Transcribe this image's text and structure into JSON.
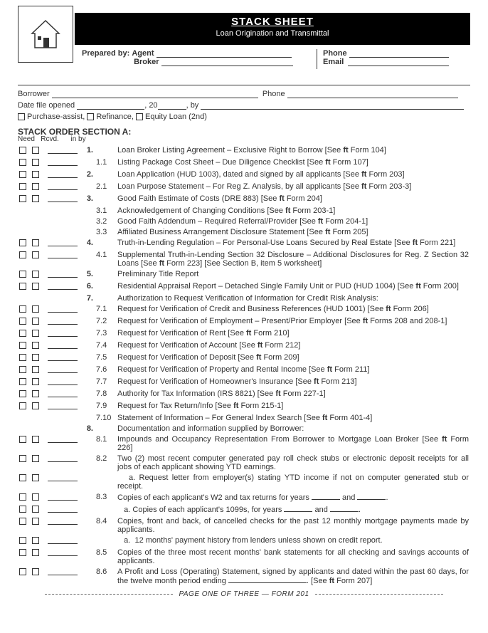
{
  "header": {
    "title": "STACK SHEET",
    "subtitle": "Loan Origination and Transmittal"
  },
  "prep": {
    "label": "Prepared by:",
    "agent": "Agent",
    "broker": "Broker",
    "phone": "Phone",
    "email": "Email"
  },
  "info": {
    "borrower": "Borrower",
    "phone": "Phone",
    "date_opened": "Date file opened",
    "by": "by",
    "year_prefix": "20",
    "purchase": "Purchase-assist,",
    "refinance": "Refinance,",
    "equity": "Equity Loan (2nd)"
  },
  "section": {
    "title": "STACK ORDER SECTION A:",
    "need": "Need",
    "rcvd": "Rcvd.",
    "inby": "in by"
  },
  "items": [
    {
      "cb": true,
      "num": "1.",
      "sub": "",
      "text": "Loan Broker Listing Agreement – Exclusive Right to Borrow [See <span class='ft'>ft</span> Form 104]"
    },
    {
      "cb": true,
      "num": "",
      "sub": "1.1",
      "text": "Listing Package Cost Sheet – Due Diligence Checklist [See <span class='ft'>ft</span> Form 107]"
    },
    {
      "cb": true,
      "num": "2.",
      "sub": "",
      "text": "Loan Application (HUD 1003), dated and signed by all applicants [See <span class='ft'>ft</span> Form 203]"
    },
    {
      "cb": true,
      "num": "",
      "sub": "2.1",
      "text": "Loan Purpose Statement – For Reg Z. Analysis, by all applicants [See <span class='ft'>ft</span> Form 203-3]"
    },
    {
      "cb": true,
      "num": "3.",
      "sub": "",
      "text": "Good Faith Estimate of Costs (DRE 883) [See <span class='ft'>ft</span> Form 204]"
    },
    {
      "cb": false,
      "num": "",
      "sub": "3.1",
      "text": "Acknowledgement of Changing Conditions [See <span class='ft'>ft</span> Form 203-1]"
    },
    {
      "cb": false,
      "num": "",
      "sub": "3.2",
      "text": "Good Faith Addendum – Required Referral/Provider [See <span class='ft'>ft</span> Form 204-1]"
    },
    {
      "cb": false,
      "num": "",
      "sub": "3.3",
      "text": "Affiliated Business Arrangement Disclosure Statement [See <span class='ft'>ft</span> Form 205]"
    },
    {
      "cb": true,
      "num": "4.",
      "sub": "",
      "text": "Truth-in-Lending Regulation – For Personal-Use Loans Secured by Real Estate [See <span class='ft'>ft</span> Form 221]"
    },
    {
      "cb": true,
      "num": "",
      "sub": "4.1",
      "text": "Supplemental Truth-in-Lending Section 32 Disclosure – Additional Disclosures for Reg. Z Section 32 Loans [See <span class='ft'>ft</span> Form 223] [See Section B, item 5 worksheet]"
    },
    {
      "cb": true,
      "num": "5.",
      "sub": "",
      "text": "Preliminary Title Report"
    },
    {
      "cb": true,
      "num": "6.",
      "sub": "",
      "text": "Residential Appraisal Report – Detached Single Family Unit or PUD (HUD 1004) [See <span class='ft'>ft</span> Form 200]"
    },
    {
      "cb": false,
      "num": "7.",
      "sub": "",
      "text": "Authorization to Request Verification of Information for Credit Risk Analysis:"
    },
    {
      "cb": true,
      "num": "",
      "sub": "7.1",
      "text": "Request for Verification of Credit and Business References (HUD 1001) [See <span class='ft'>ft</span> Form 206]"
    },
    {
      "cb": true,
      "num": "",
      "sub": "7.2",
      "text": "Request for Verification of Employment – Present/Prior Employer [See <span class='ft'>ft</span> Forms 208 and 208-1]"
    },
    {
      "cb": true,
      "num": "",
      "sub": "7.3",
      "text": "Request for Verification of Rent [See <span class='ft'>ft</span> Form 210]"
    },
    {
      "cb": true,
      "num": "",
      "sub": "7.4",
      "text": "Request for Verification of Account [See <span class='ft'>ft</span> Form 212]"
    },
    {
      "cb": true,
      "num": "",
      "sub": "7.5",
      "text": "Request for Verification of Deposit [See <span class='ft'>ft</span> Form 209]"
    },
    {
      "cb": true,
      "num": "",
      "sub": "7.6",
      "text": "Request for Verification of Property and Rental Income [See <span class='ft'>ft</span> Form 211]"
    },
    {
      "cb": true,
      "num": "",
      "sub": "7.7",
      "text": "Request for Verification of Homeowner's Insurance [See <span class='ft'>ft</span> Form 213]"
    },
    {
      "cb": true,
      "num": "",
      "sub": "7.8",
      "text": "Authority for Tax Information (IRS 8821) [See <span class='ft'>ft</span> Form 227-1]"
    },
    {
      "cb": true,
      "num": "",
      "sub": "7.9",
      "text": "Request for Tax Return/Info [See <span class='ft'>ft</span> Form 215-1]"
    },
    {
      "cb": false,
      "num": "",
      "sub": "7.10",
      "text": "Statement of Information – For General Index Search [See <span class='ft'>ft</span> Form 401-4]"
    },
    {
      "cb": false,
      "num": "8.",
      "sub": "",
      "text": "Documentation and information supplied by Borrower:"
    },
    {
      "cb": true,
      "num": "",
      "sub": "8.1",
      "text": "Impounds and Occupancy Representation From Borrower to Mortgage Loan Broker [See <span class='ft'>ft</span> Form 226]"
    },
    {
      "cb": true,
      "num": "",
      "sub": "8.2",
      "text": "Two (2) most recent computer generated pay roll check stubs or electronic deposit receipts for all jobs of each applicant showing YTD earnings."
    },
    {
      "cb": true,
      "num": "",
      "sub": "",
      "text": "&nbsp;&nbsp;&nbsp;a. Request letter from employer(s) stating YTD income if not on computer generated stub or receipt.",
      "indent": true
    },
    {
      "cb": true,
      "num": "",
      "sub": "8.3",
      "text": "Copies of each applicant's W2 and tax returns for years <span class='sm-uline'></span> and <span class='sm-uline'></span>."
    },
    {
      "cb": true,
      "num": "",
      "sub": "",
      "text": "&nbsp;&nbsp;&nbsp;a. Copies of each applicant's 1099s, for years <span class='sm-uline'></span> and <span class='sm-uline'></span>.",
      "indent": true
    },
    {
      "cb": true,
      "num": "",
      "sub": "8.4",
      "text": "Copies, front and back, of cancelled checks for the past 12 monthly mortgage payments made by applicants."
    },
    {
      "cb": true,
      "num": "",
      "sub": "",
      "text": "&nbsp;&nbsp;&nbsp;a. &nbsp;12 months' payment history from lenders unless shown on credit report.",
      "indent": true
    },
    {
      "cb": true,
      "num": "",
      "sub": "8.5",
      "text": "Copies of the three most recent months' bank statements for all checking and savings accounts of applicants."
    },
    {
      "cb": true,
      "num": "",
      "sub": "8.6",
      "text": "A Profit and Loss (Operating) Statement, signed by applicants and dated within the past 60 days, for the twelve month period ending <span class='med-uline'></span>. [See <span class='ft'>ft</span> Form 207]"
    }
  ],
  "footer": "PAGE ONE OF THREE — FORM 201"
}
